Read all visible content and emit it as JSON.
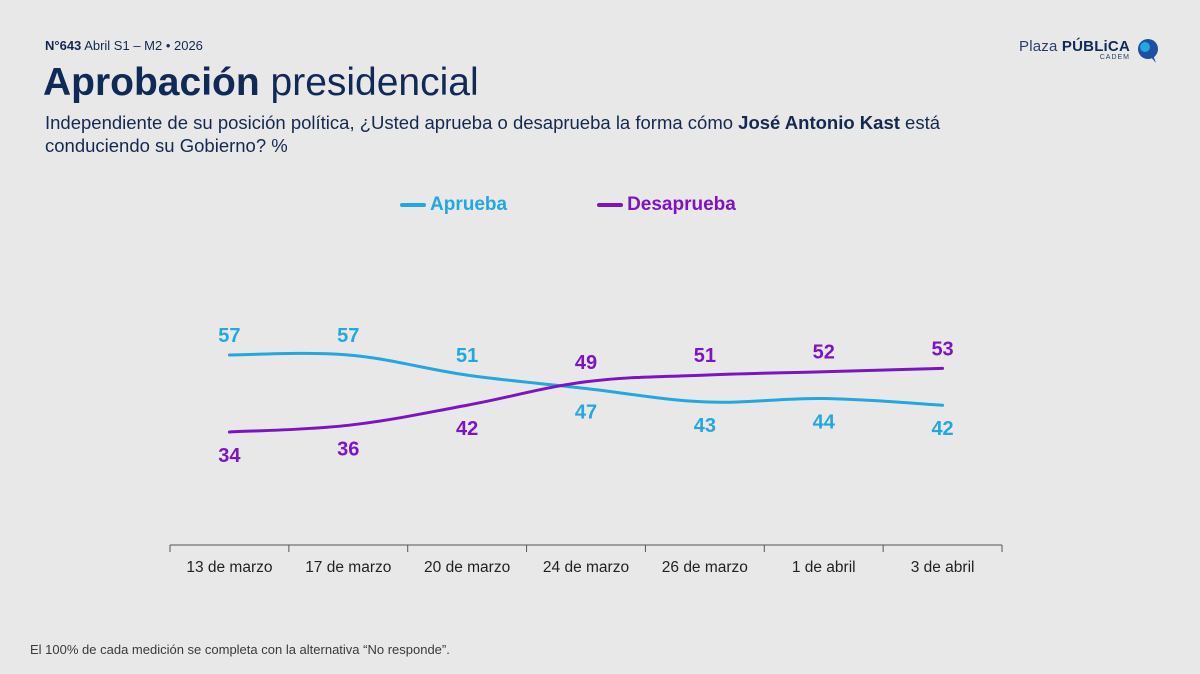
{
  "header": {
    "issue_number": "N°643",
    "issue_period": "Abril S1 – M2 • 2026",
    "title_bold": "Aprobación",
    "title_rest": "presidencial",
    "question_part1": "Independiente de su posición política, ¿Usted aprueba o desaprueba la forma cómo ",
    "question_bold": "José Antonio Kast",
    "question_part2": " está conduciendo su Gobierno? %"
  },
  "logo": {
    "word1": "Plaza",
    "word2": "PÚBLiCA",
    "sub": "CADEM",
    "icon": "speech-bubble-icon"
  },
  "colors": {
    "aprueba": "#22a7e0",
    "desaprueba": "#7d14c4",
    "text_dark": "#0f2a55",
    "axis": "#555555"
  },
  "chart_data": {
    "type": "line",
    "categories": [
      "13 de marzo",
      "17 de marzo",
      "20 de marzo",
      "24 de marzo",
      "26 de marzo",
      "1 de abril",
      "3 de abril"
    ],
    "series": [
      {
        "name": "Aprueba",
        "values": [
          57,
          57,
          51,
          47,
          43,
          44,
          42
        ]
      },
      {
        "name": "Desaprueba",
        "values": [
          34,
          36,
          42,
          49,
          51,
          52,
          53
        ]
      }
    ],
    "ylim": [
      25,
      65
    ],
    "legend_position": "top"
  },
  "footnote": "El 100% de cada medición se completa con la alternativa “No responde”."
}
